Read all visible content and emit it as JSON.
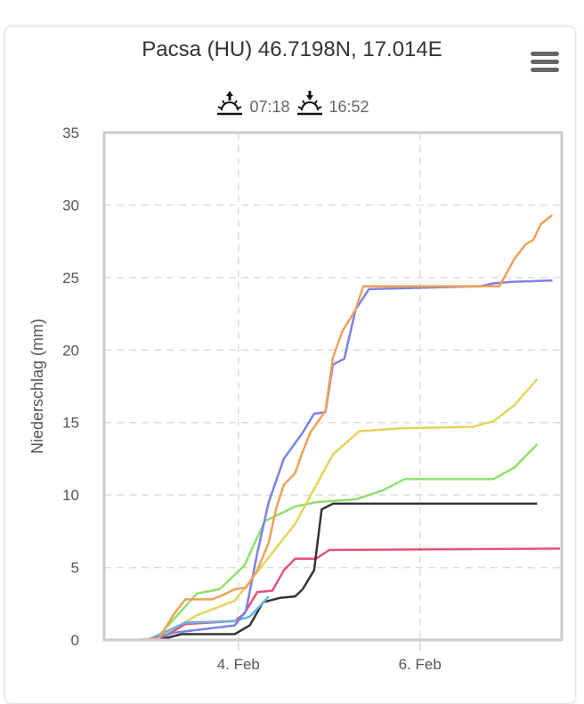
{
  "header": {
    "title": "Pacsa (HU) 46.7198N, 17.014E",
    "sunrise": "07:18",
    "sunset": "16:52",
    "menu_icon": "hamburger-menu-icon",
    "sunrise_icon": "sunrise-icon",
    "sunset_icon": "sunset-icon"
  },
  "chart_data": {
    "type": "line",
    "title": "Pacsa (HU) 46.7198N, 17.014E",
    "ylabel": "Niederschlag (mm)",
    "xlabel": "",
    "ylim": [
      0,
      35
    ],
    "yticks": [
      "0",
      "5",
      "10",
      "15",
      "20",
      "25",
      "30",
      "35"
    ],
    "xlim": [
      "02-02 12:30",
      "02-07 13:30"
    ],
    "xticks": [
      {
        "at": "02-04 00:00",
        "label": "4. Feb"
      },
      {
        "at": "02-06 00:00",
        "label": "6. Feb"
      }
    ],
    "grid": true,
    "legend": "none",
    "series": [
      {
        "color": "#8fe06c",
        "points": [
          [
            "02-03 02:00",
            0
          ],
          [
            "02-03 13:00",
            3.2
          ],
          [
            "02-03 19:00",
            3.5
          ],
          [
            "02-04 01:30",
            5.1
          ],
          [
            "02-04 07:00",
            8.2
          ],
          [
            "02-04 15:00",
            9.2
          ],
          [
            "02-04 20:30",
            9.5
          ],
          [
            "02-05 07:00",
            9.7
          ],
          [
            "02-05 14:00",
            10.3
          ],
          [
            "02-05 20:00",
            11.1
          ],
          [
            "02-06 19:30",
            11.1
          ],
          [
            "02-07 01:00",
            11.9
          ],
          [
            "02-07 07:00",
            13.5
          ]
        ]
      },
      {
        "color": "#e4d45c",
        "points": [
          [
            "02-03 02:00",
            0
          ],
          [
            "02-03 13:00",
            1.7
          ],
          [
            "02-03 23:00",
            2.7
          ],
          [
            "02-04 03:30",
            4.2
          ],
          [
            "02-04 15:00",
            8.0
          ],
          [
            "02-05 01:00",
            12.8
          ],
          [
            "02-05 08:00",
            14.4
          ],
          [
            "02-05 19:00",
            14.6
          ],
          [
            "02-06 14:00",
            14.7
          ],
          [
            "02-06 19:30",
            15.1
          ],
          [
            "02-07 01:00",
            16.2
          ],
          [
            "02-07 07:00",
            18.0
          ]
        ]
      },
      {
        "color": "#e4527a",
        "points": [
          [
            "02-03 03:00",
            0
          ],
          [
            "02-03 10:00",
            1.1
          ],
          [
            "02-03 23:00",
            1.3
          ],
          [
            "02-04 01:30",
            1.8
          ],
          [
            "02-04 05:00",
            3.3
          ],
          [
            "02-04 09:00",
            3.4
          ],
          [
            "02-04 12:00",
            4.8
          ],
          [
            "02-04 15:00",
            5.6
          ],
          [
            "02-04 20:30",
            5.6
          ],
          [
            "02-05 00:00",
            6.2
          ],
          [
            "02-07 13:00",
            6.3
          ]
        ]
      },
      {
        "color": "#333333",
        "points": [
          [
            "02-03 03:00",
            0
          ],
          [
            "02-03 09:00",
            0.4
          ],
          [
            "02-03 23:00",
            0.4
          ],
          [
            "02-04 03:00",
            1.0
          ],
          [
            "02-04 06:30",
            2.6
          ],
          [
            "02-04 11:00",
            2.9
          ],
          [
            "02-04 15:00",
            3.0
          ],
          [
            "02-04 17:00",
            3.5
          ],
          [
            "02-04 20:00",
            4.8
          ],
          [
            "02-04 22:00",
            9.0
          ],
          [
            "02-05 01:00",
            9.4
          ],
          [
            "02-07 07:00",
            9.4
          ]
        ]
      },
      {
        "color": "#66b4e8",
        "points": [
          [
            "02-03 00:00",
            0
          ],
          [
            "02-03 10:00",
            1.2
          ],
          [
            "02-03 23:00",
            1.3
          ],
          [
            "02-04 03:00",
            1.6
          ],
          [
            "02-04 07:00",
            2.7
          ],
          [
            "02-04 08:00",
            3.0
          ]
        ]
      },
      {
        "color": "#7b83e0",
        "points": [
          [
            "02-03 00:00",
            0
          ],
          [
            "02-03 07:00",
            0.5
          ],
          [
            "02-03 23:00",
            1.0
          ],
          [
            "02-04 02:00",
            2.0
          ],
          [
            "02-04 05:00",
            6.0
          ],
          [
            "02-04 08:00",
            9.5
          ],
          [
            "02-04 12:00",
            12.5
          ],
          [
            "02-04 17:00",
            14.3
          ],
          [
            "02-04 20:00",
            15.6
          ],
          [
            "02-04 23:00",
            15.7
          ],
          [
            "02-05 01:00",
            19.0
          ],
          [
            "02-05 04:00",
            19.4
          ],
          [
            "02-05 07:00",
            22.8
          ],
          [
            "02-05 10:30",
            24.2
          ],
          [
            "02-06 16:00",
            24.4
          ],
          [
            "02-06 19:30",
            24.6
          ],
          [
            "02-07 00:00",
            24.7
          ],
          [
            "02-07 11:00",
            24.8
          ]
        ]
      },
      {
        "color": "#eea15a",
        "points": [
          [
            "02-02 20:00",
            0
          ],
          [
            "02-03 03:00",
            0.1
          ],
          [
            "02-03 07:00",
            1.8
          ],
          [
            "02-03 10:00",
            2.8
          ],
          [
            "02-03 17:00",
            2.8
          ],
          [
            "02-03 20:00",
            3.1
          ],
          [
            "02-03 23:00",
            3.5
          ],
          [
            "02-04 02:00",
            3.6
          ],
          [
            "02-04 05:00",
            4.8
          ],
          [
            "02-04 08:00",
            6.7
          ],
          [
            "02-04 10:00",
            9.1
          ],
          [
            "02-04 12:00",
            10.7
          ],
          [
            "02-04 15:00",
            11.5
          ],
          [
            "02-04 17:00",
            13.0
          ],
          [
            "02-04 19:00",
            14.3
          ],
          [
            "02-04 23:00",
            15.8
          ],
          [
            "02-05 01:00",
            19.5
          ],
          [
            "02-05 03:30",
            21.3
          ],
          [
            "02-05 07:00",
            22.8
          ],
          [
            "02-05 09:00",
            24.4
          ],
          [
            "02-06 21:00",
            24.4
          ],
          [
            "02-07 01:00",
            26.3
          ],
          [
            "02-07 04:00",
            27.3
          ],
          [
            "02-07 06:00",
            27.6
          ],
          [
            "02-07 08:00",
            28.7
          ],
          [
            "02-07 11:00",
            29.3
          ]
        ]
      }
    ]
  }
}
